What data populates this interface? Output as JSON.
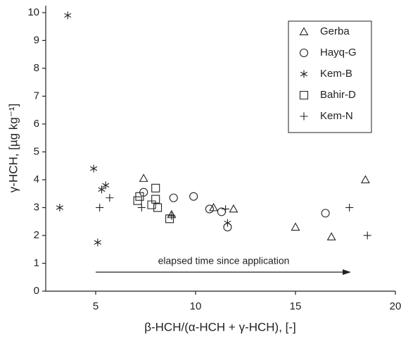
{
  "chart_data": {
    "type": "scatter",
    "x_label": "β-HCH/(α-HCH + γ-HCH), [-]",
    "y_label": "γ-HCH, [µg kg⁻¹]",
    "annotation": "elapsed time since application",
    "xlim": [
      2.5,
      20
    ],
    "xticks": [
      5,
      10,
      15,
      20
    ],
    "ylim": [
      0,
      10.25
    ],
    "yticks": [
      0,
      1,
      2,
      3,
      4,
      5,
      6,
      7,
      8,
      9,
      10
    ],
    "legend": "upper right",
    "series": [
      {
        "name": "Gerba",
        "marker": "triangle",
        "color": "#222222",
        "x": [
          7.4,
          8.8,
          10.9,
          11.9,
          15.0,
          16.8,
          18.5
        ],
        "values": [
          4.05,
          2.75,
          3.0,
          2.95,
          2.3,
          1.95,
          4.0
        ]
      },
      {
        "name": "Hayq-G",
        "marker": "circle",
        "color": "#222222",
        "x": [
          7.4,
          8.9,
          9.9,
          10.7,
          11.3,
          11.6,
          16.5
        ],
        "values": [
          3.55,
          3.35,
          3.4,
          2.95,
          2.85,
          2.3,
          2.8
        ]
      },
      {
        "name": "Kem-B",
        "marker": "asterisk",
        "color": "#222222",
        "x": [
          3.2,
          3.6,
          4.9,
          5.1,
          5.3,
          5.5,
          11.6
        ],
        "values": [
          3.0,
          9.9,
          4.4,
          1.75,
          3.65,
          3.8,
          2.45
        ]
      },
      {
        "name": "Bahir-D",
        "marker": "square",
        "color": "#222222",
        "x": [
          7.1,
          7.2,
          7.8,
          8.0,
          8.1,
          8.0,
          8.7
        ],
        "values": [
          3.25,
          3.4,
          3.1,
          3.3,
          3.0,
          3.7,
          2.6
        ]
      },
      {
        "name": "Kem-N",
        "marker": "plus",
        "color": "#222222",
        "x": [
          5.2,
          5.7,
          7.3,
          8.8,
          11.5,
          17.7,
          18.6
        ],
        "values": [
          3.0,
          3.35,
          3.0,
          2.7,
          2.95,
          3.0,
          2.0
        ]
      }
    ]
  }
}
